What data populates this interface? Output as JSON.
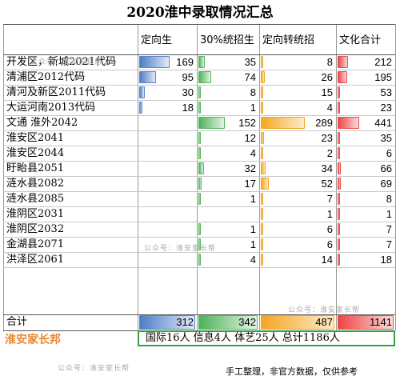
{
  "title": "2020淮中录取情况汇总",
  "headers": [
    "",
    "定向生",
    "30%统招生",
    "定向转统招",
    "文化合计"
  ],
  "colors": {
    "c1": "#4f7ec8",
    "c2": "#4fb25a",
    "c3": "#f5a623",
    "c4": "#ee4545",
    "summary_border": "#3a9e46",
    "brand": "#e8872e"
  },
  "max": {
    "c1": 312,
    "c2": 342,
    "c3": 487,
    "c4": 1141
  },
  "rows": [
    {
      "name": "开发区，新城2021代码",
      "c1": "169",
      "c2": "35",
      "c3": "8",
      "c4": "212"
    },
    {
      "name": "清浦区2012代码",
      "c1": "95",
      "c2": "74",
      "c3": "26",
      "c4": "195"
    },
    {
      "name": "清河及新区2011代码",
      "c1": "30",
      "c2": "8",
      "c3": "15",
      "c4": "53"
    },
    {
      "name": "大运河南2013代码",
      "c1": "18",
      "c2": "1",
      "c3": "4",
      "c4": "23"
    },
    {
      "name": "文通  淮外2042",
      "c1": "",
      "c2": "152",
      "c3": "289",
      "c4": "441"
    },
    {
      "name": "淮安区2041",
      "c1": "",
      "c2": "12",
      "c3": "23",
      "c4": "35"
    },
    {
      "name": "淮安区2044",
      "c1": "",
      "c2": "4",
      "c3": "2",
      "c4": "6"
    },
    {
      "name": "盱眙县2051",
      "c1": "",
      "c2": "32",
      "c3": "34",
      "c4": "66"
    },
    {
      "name": "涟水县2082",
      "c1": "",
      "c2": "17",
      "c3": "52",
      "c4": "69"
    },
    {
      "name": "涟水县2085",
      "c1": "",
      "c2": "1",
      "c3": "7",
      "c4": "8"
    },
    {
      "name": "淮阴区2031",
      "c1": "",
      "c2": "",
      "c3": "1",
      "c4": "1"
    },
    {
      "name": "淮阴区2032",
      "c1": "",
      "c2": "1",
      "c3": "6",
      "c4": "7"
    },
    {
      "name": "金湖县2071",
      "c1": "",
      "c2": "1",
      "c3": "6",
      "c4": "7"
    },
    {
      "name": "洪泽区2061",
      "c1": "",
      "c2": "4",
      "c3": "14",
      "c4": "18"
    }
  ],
  "total": {
    "name": "合计",
    "c1": "312",
    "c2": "342",
    "c3": "487",
    "c4": "1141"
  },
  "brand": "淮安家长邦",
  "summary": "国际16人  信息4人  体艺25人  总计1186人",
  "watermark": "公众号：淮安家长帮",
  "note": "手工整理，非官方数据，仅供参考"
}
